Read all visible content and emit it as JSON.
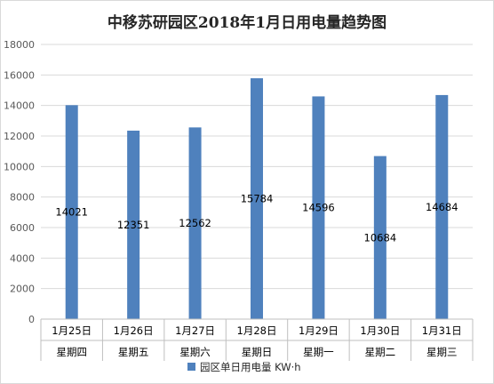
{
  "chart_data": {
    "type": "bar",
    "title": "中移苏研园区2018年1月日用电量趋势图",
    "xlabel": "",
    "ylabel": "",
    "categories": [
      [
        "1月25日",
        "星期四"
      ],
      [
        "1月26日",
        "星期五"
      ],
      [
        "1月27日",
        "星期六"
      ],
      [
        "1月28日",
        "星期日"
      ],
      [
        "1月29日",
        "星期一"
      ],
      [
        "1月30日",
        "星期二"
      ],
      [
        "1月31日",
        "星期三"
      ]
    ],
    "series": [
      {
        "name": "园区单日用电量  KW·h",
        "values": [
          14021,
          12351,
          12562,
          15784,
          14596,
          10684,
          14684
        ],
        "color": "#4f81bd"
      }
    ],
    "ylim": [
      0,
      18000
    ],
    "yticks": [
      0,
      2000,
      4000,
      6000,
      8000,
      10000,
      12000,
      14000,
      16000,
      18000
    ],
    "grid": true,
    "legend": "bottom",
    "data_labels": true
  }
}
